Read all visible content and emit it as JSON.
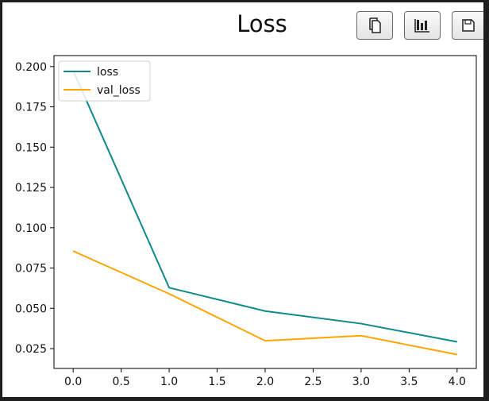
{
  "header": {
    "title": "Loss"
  },
  "toolbar": {
    "buttons": [
      {
        "name": "copy-button",
        "icon": "copy-icon"
      },
      {
        "name": "bar-chart-button",
        "icon": "bar-chart-icon"
      },
      {
        "name": "save-button",
        "icon": "save-icon"
      }
    ]
  },
  "chart_data": {
    "type": "line",
    "title": "Loss",
    "xlabel": "",
    "ylabel": "",
    "x": [
      0,
      1,
      2,
      3,
      4
    ],
    "xlim": [
      -0.2,
      4.2
    ],
    "ylim": [
      0.0127,
      0.2068
    ],
    "x_ticks": [
      "0.0",
      "0.5",
      "1.0",
      "1.5",
      "2.0",
      "2.5",
      "3.0",
      "3.5",
      "4.0"
    ],
    "y_ticks": [
      "0.025",
      "0.050",
      "0.075",
      "0.100",
      "0.125",
      "0.150",
      "0.175",
      "0.200"
    ],
    "grid": false,
    "legend_position": "top-left",
    "series": [
      {
        "name": "loss",
        "color": "#0e8a8a",
        "values": [
          0.1975,
          0.0628,
          0.0483,
          0.0405,
          0.0292
        ]
      },
      {
        "name": "val_loss",
        "color": "#ffa500",
        "values": [
          0.0855,
          0.059,
          0.0299,
          0.033,
          0.0213
        ]
      }
    ]
  }
}
